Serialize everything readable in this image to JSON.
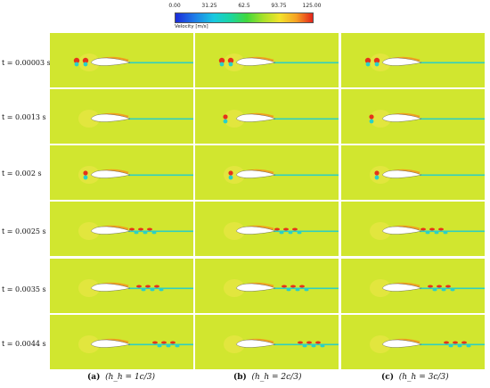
{
  "colorbar": {
    "ticks": [
      "0.00",
      "31.25",
      "62.5",
      "93.75",
      "125.00"
    ],
    "title": "Velocity [m/s]",
    "colors": [
      "#1c2bd9",
      "#1f7de8",
      "#18c9e0",
      "#1ad6a2",
      "#42d83c",
      "#a8e12a",
      "#f3e32b",
      "#f6a224",
      "#e3241b"
    ]
  },
  "rows": [
    {
      "label": "t = 0.00003 s"
    },
    {
      "label": "t = 0.0013 s"
    },
    {
      "label": "t = 0.002 s"
    },
    {
      "label": "t = 0.0025 s"
    },
    {
      "label": "t = 0.0035 s"
    },
    {
      "label": "t = 0.0044 s"
    }
  ],
  "columns": [
    {
      "tag": "(a)",
      "expr": "(h_h = 1c/3)"
    },
    {
      "tag": "(b)",
      "expr": "(h_h = 2c/3)"
    },
    {
      "tag": "(c)",
      "expr": "(h_h = 3c/3)"
    }
  ],
  "background_color": "#d1e62f"
}
